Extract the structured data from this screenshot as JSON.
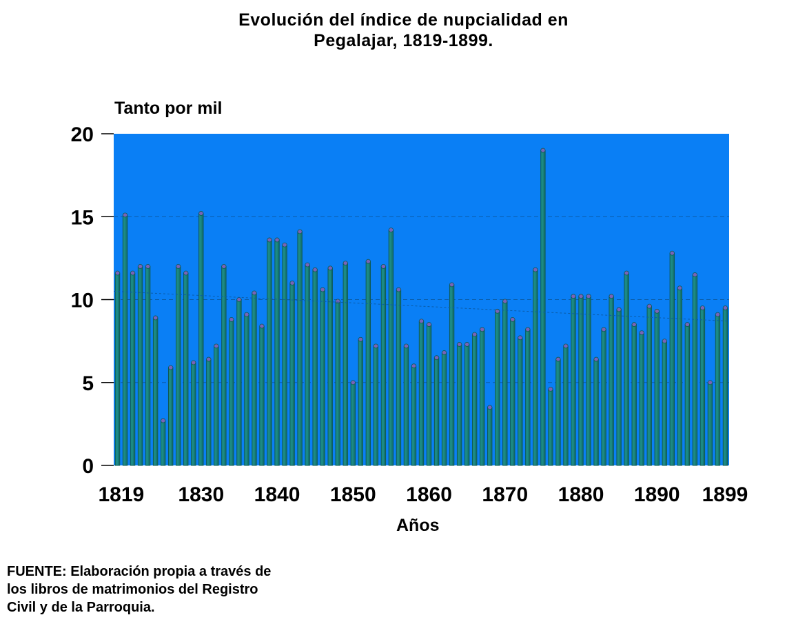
{
  "chart_data": {
    "type": "bar",
    "title_lines": [
      "Evolución del índice de nupcialidad en",
      "Pegalajar, 1819-1899."
    ],
    "ylabel": "Tanto por mil",
    "xlabel": "Años",
    "ylim": [
      0,
      20
    ],
    "yticks": [
      "0",
      "5",
      "10",
      "15",
      "20"
    ],
    "xtick_labels": [
      {
        "year": 1819,
        "label": "1819"
      },
      {
        "year": 1830,
        "label": "1830"
      },
      {
        "year": 1840,
        "label": "1840"
      },
      {
        "year": 1850,
        "label": "1850"
      },
      {
        "year": 1860,
        "label": "1860"
      },
      {
        "year": 1870,
        "label": "1870"
      },
      {
        "year": 1880,
        "label": "1880"
      },
      {
        "year": 1890,
        "label": "1890"
      },
      {
        "year": 1899,
        "label": "1899"
      }
    ],
    "grid": true,
    "trendline": true,
    "categories": [
      1819,
      1820,
      1821,
      1822,
      1823,
      1824,
      1825,
      1826,
      1827,
      1828,
      1829,
      1830,
      1831,
      1832,
      1833,
      1834,
      1835,
      1836,
      1837,
      1838,
      1839,
      1840,
      1841,
      1842,
      1843,
      1844,
      1845,
      1846,
      1847,
      1848,
      1849,
      1850,
      1851,
      1852,
      1853,
      1854,
      1855,
      1856,
      1857,
      1858,
      1859,
      1860,
      1861,
      1862,
      1863,
      1864,
      1865,
      1866,
      1867,
      1868,
      1869,
      1870,
      1871,
      1872,
      1873,
      1874,
      1875,
      1876,
      1877,
      1878,
      1879,
      1880,
      1881,
      1882,
      1883,
      1884,
      1885,
      1886,
      1887,
      1888,
      1889,
      1890,
      1891,
      1892,
      1893,
      1894,
      1895,
      1896,
      1897,
      1898,
      1899
    ],
    "values": [
      11.6,
      15.1,
      11.6,
      12.0,
      12.0,
      8.9,
      2.7,
      5.9,
      12.0,
      11.6,
      6.2,
      15.2,
      6.4,
      7.2,
      12.0,
      8.8,
      10.0,
      9.1,
      10.4,
      8.4,
      13.6,
      13.6,
      13.3,
      11.0,
      14.1,
      12.1,
      11.8,
      10.6,
      11.9,
      9.9,
      12.2,
      5.0,
      7.6,
      12.3,
      7.2,
      12.0,
      14.2,
      10.6,
      7.2,
      6.0,
      8.7,
      8.5,
      6.5,
      6.8,
      10.9,
      7.3,
      7.3,
      7.9,
      8.2,
      3.5,
      9.3,
      9.9,
      8.8,
      7.7,
      8.2,
      11.8,
      19.0,
      4.6,
      6.4,
      7.2,
      10.2,
      10.2,
      10.2,
      6.4,
      8.2,
      10.2,
      9.4,
      11.6,
      8.5,
      8.0,
      9.6,
      9.3,
      7.5,
      12.8,
      10.7,
      8.5,
      11.5,
      9.5,
      5.0,
      9.1,
      9.5
    ],
    "trend": {
      "start": 10.5,
      "end": 8.7
    },
    "colors": {
      "plot_bg": "#0a7ff5",
      "bar": "#1c8a84",
      "bar_edge": "#0e5a56",
      "cap": "#7a63b8",
      "gridline": "#0a5ca8",
      "trendline": "#0a5ca8"
    }
  },
  "source": {
    "lines": [
      "FUENTE: Elaboración propia a través de",
      "los libros de matrimonios del Registro",
      "Civil y de la Parroquia."
    ]
  }
}
